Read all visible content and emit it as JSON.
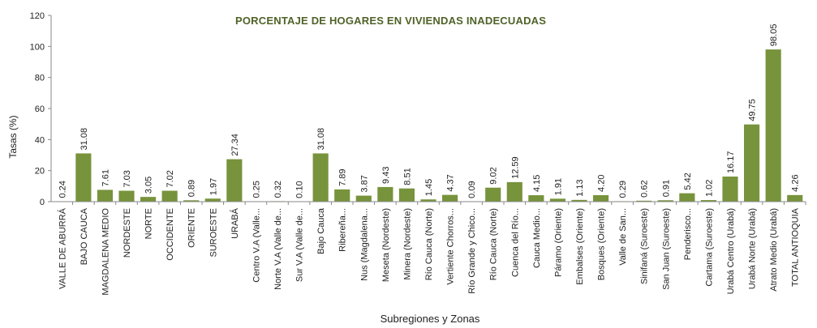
{
  "chart_data": {
    "type": "bar",
    "title": "PORCENTAJE DE HOGARES EN VIVIENDAS INADECUADAS",
    "xlabel": "Subregiones y Zonas",
    "ylabel": "Tasas (%)",
    "ylim": [
      0,
      120
    ],
    "yticks": [
      "0",
      "20",
      "40",
      "60",
      "80",
      "100",
      "120"
    ],
    "grid": false,
    "legend": "none",
    "bar_color": "#77933c",
    "categories": [
      "VALLE DE ABURRÁ",
      "BAJO CAUCA",
      "MAGDALENA MEDIO",
      "NORDESTE",
      "NORTE",
      "OCCIDENTE",
      "ORIENTE",
      "SUROESTE",
      "URABÁ",
      "Centro V.A (Valle...",
      "Norte V.A (Valle de...",
      "Sur V.A (Valle de...",
      "Bajo Cauca",
      "Ribereña...",
      "Nus (Magdalena...",
      "Meseta (Nordeste)",
      "Minera (Nordeste)",
      "Río Cauca (Norte)",
      "Vertiente Chorros...",
      "Río Grande y Chico...",
      "Río Cauca (Norte)",
      "Cuenca del Río...",
      "Cauca Medio...",
      "Páramo (Oriente)",
      "Embalses (Oriente)",
      "Bosques (Oriente)",
      "Valle de San...",
      "Sinifaná (Suroeste)",
      "San Juan (Suroeste)",
      "Penderisco...",
      "Cartama (Suroeste)",
      "Urabá Centro (Urabá)",
      "Urabá Norte (Urabá)",
      "Atrato Medio (Urabá)",
      "TOTAL ANTIOQUIA"
    ],
    "values": [
      0.24,
      31.08,
      7.61,
      7.03,
      3.05,
      7.02,
      0.89,
      1.97,
      27.34,
      0.25,
      0.32,
      0.1,
      31.08,
      7.89,
      3.87,
      9.43,
      8.51,
      1.45,
      4.37,
      0.09,
      9.02,
      12.59,
      4.15,
      1.91,
      1.13,
      4.2,
      0.29,
      0.62,
      0.91,
      5.42,
      1.02,
      16.17,
      49.75,
      98.05,
      4.26
    ],
    "labels": [
      "0.24",
      "31.08",
      "7.61",
      "7.03",
      "3.05",
      "7.02",
      "0.89",
      "1.97",
      "27.34",
      "0.25",
      "0.32",
      "0.10",
      "31.08",
      "7.89",
      "3.87",
      "9.43",
      "8.51",
      "1.45",
      "4.37",
      "0.09",
      "9.02",
      "12.59",
      "4.15",
      "1.91",
      "1.13",
      "4.20",
      "0.29",
      "0.62",
      "0.91",
      "5.42",
      "1.02",
      "16.17",
      "49.75",
      "98.05",
      "4.26"
    ]
  }
}
